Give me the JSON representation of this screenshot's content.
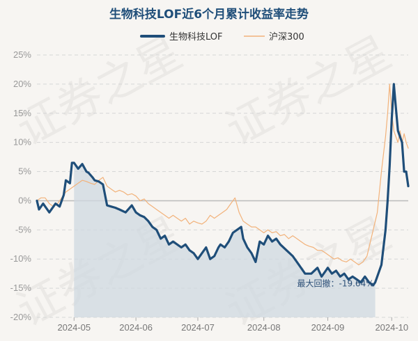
{
  "colors": {
    "primary": "#1f4e79",
    "benchmark": "#f2b27a",
    "area": "#cfd8e0",
    "zero_line": "#bbbbbb"
  },
  "watermark": "证券之星",
  "chart_data": {
    "type": "line",
    "title": "生物科技LOF近6个月累计收益率走势",
    "legend_position": "top-center",
    "ylim": [
      -20,
      25
    ],
    "yticks": [
      25,
      20,
      15,
      10,
      5,
      0,
      -5,
      -10,
      -15,
      -20
    ],
    "ytick_labels": [
      "25%",
      "20%",
      "15%",
      "10%",
      "5%",
      "0%",
      "-5%",
      "-10%",
      "-15%",
      "-20%"
    ],
    "xlim": [
      0,
      180
    ],
    "xticks": [
      {
        "x": 18,
        "label": "2024-05"
      },
      {
        "x": 48,
        "label": "2024-06"
      },
      {
        "x": 78,
        "label": "2024-07"
      },
      {
        "x": 110,
        "label": "2024-08"
      },
      {
        "x": 141,
        "label": "2024-09"
      },
      {
        "x": 172,
        "label": "2024-10"
      }
    ],
    "series": [
      {
        "name": "生物科技LOF",
        "x": [
          0,
          1,
          3,
          6,
          9,
          11,
          13,
          14,
          16,
          17,
          18,
          20,
          22,
          24,
          25,
          27,
          28,
          30,
          32,
          34,
          36,
          38,
          40,
          43,
          46,
          48,
          50,
          52,
          54,
          56,
          58,
          60,
          62,
          64,
          66,
          68,
          70,
          72,
          74,
          76,
          78,
          80,
          82,
          84,
          86,
          88,
          89,
          91,
          93,
          95,
          97,
          99,
          100,
          102,
          104,
          106,
          108,
          110,
          112,
          114,
          116,
          118,
          121,
          124,
          127,
          130,
          133,
          136,
          138,
          140,
          141,
          143,
          145,
          147,
          149,
          151,
          153,
          155,
          157,
          159,
          161,
          163,
          164,
          166,
          167,
          169,
          170,
          171,
          172,
          173,
          174,
          175,
          177,
          178,
          179,
          180
        ],
        "values": [
          0,
          -1.5,
          -0.5,
          -2,
          -0.5,
          -1,
          1,
          3.5,
          3,
          6.5,
          6.5,
          5.5,
          6.3,
          5,
          4.8,
          4,
          3.5,
          3.3,
          2.8,
          -0.8,
          -1,
          -1.2,
          -1.5,
          -2,
          -0.8,
          -2,
          -2.5,
          -2.8,
          -3.5,
          -4.5,
          -5,
          -6.5,
          -6,
          -7.5,
          -7,
          -7.5,
          -8,
          -7.5,
          -8.5,
          -9,
          -10,
          -9,
          -8,
          -10,
          -9.5,
          -8,
          -7.5,
          -8,
          -7,
          -5.5,
          -5,
          -4.5,
          -6.5,
          -8,
          -9,
          -10.5,
          -7,
          -7.5,
          -6,
          -7,
          -6.5,
          -7.5,
          -8.5,
          -9.5,
          -11,
          -12.5,
          -12.5,
          -11.5,
          -13,
          -12,
          -11.5,
          -12.5,
          -12,
          -13,
          -12.5,
          -13.5,
          -13,
          -13.5,
          -14,
          -13,
          -14,
          -14.5,
          -14,
          -12,
          -11,
          -5,
          0,
          6,
          14,
          20,
          16,
          12,
          10,
          5,
          5,
          2.5
        ]
      },
      {
        "name": "沪深300",
        "x": [
          0,
          2,
          4,
          6,
          8,
          10,
          12,
          14,
          16,
          18,
          20,
          22,
          24,
          26,
          28,
          30,
          32,
          34,
          36,
          38,
          40,
          42,
          44,
          46,
          48,
          50,
          52,
          54,
          56,
          58,
          60,
          62,
          64,
          66,
          68,
          70,
          72,
          74,
          76,
          78,
          80,
          82,
          84,
          86,
          88,
          90,
          92,
          94,
          96,
          98,
          100,
          102,
          104,
          106,
          108,
          110,
          112,
          114,
          116,
          118,
          120,
          122,
          124,
          126,
          128,
          130,
          132,
          134,
          136,
          138,
          140,
          142,
          144,
          146,
          148,
          150,
          152,
          154,
          156,
          158,
          160,
          161,
          163,
          165,
          167,
          169,
          170,
          171,
          172,
          173,
          174,
          175,
          176,
          177,
          178,
          179,
          180
        ],
        "values": [
          0,
          0.5,
          0.5,
          -0.5,
          -1,
          -0.5,
          0.5,
          1.5,
          2,
          2.5,
          3,
          3.5,
          3.3,
          3,
          2.8,
          3.5,
          4,
          2.5,
          2,
          1.5,
          1.8,
          1.5,
          1,
          1.2,
          0.8,
          0,
          0.3,
          -0.5,
          -1,
          -1.5,
          -2,
          -2.5,
          -3,
          -2.5,
          -3,
          -3.5,
          -3,
          -4,
          -3.5,
          -3.8,
          -4,
          -3.5,
          -2.5,
          -3,
          -2.5,
          -2,
          -1.5,
          -0.5,
          0.5,
          -2,
          -3.5,
          -4,
          -4.5,
          -4.5,
          -5,
          -5.5,
          -5,
          -5.5,
          -5.3,
          -6,
          -5.8,
          -6.5,
          -6,
          -6.5,
          -7,
          -7.5,
          -7.8,
          -8,
          -8.5,
          -8.5,
          -9,
          -9.5,
          -10,
          -9.8,
          -10.3,
          -10.5,
          -10,
          -10.5,
          -11,
          -10.5,
          -9.5,
          -8,
          -5,
          -2,
          5,
          11,
          15,
          20,
          15,
          12,
          11,
          10,
          12,
          10,
          11.5,
          10,
          9
        ]
      }
    ],
    "max_drawdown": {
      "label": "最大回撤：-19.64%",
      "from_x": 18,
      "to_x": 164,
      "peak": 6.5,
      "trough": -14
    }
  }
}
